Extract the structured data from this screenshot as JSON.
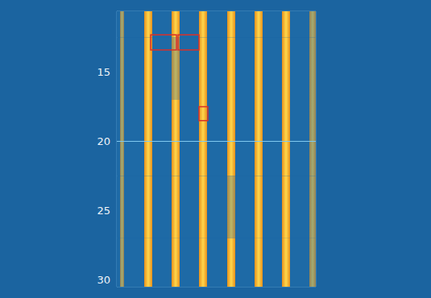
{
  "chart_data": {
    "type": "heatmap",
    "xlim": [
      0,
      247
    ],
    "ylim": [
      30.5,
      10.6
    ],
    "yticks": [
      15,
      20,
      25,
      30
    ],
    "tick_labels": "y",
    "grid": false,
    "x_bins": [
      0,
      4,
      9,
      34,
      44,
      68,
      78,
      102,
      112,
      137,
      147,
      171,
      181,
      205,
      215,
      239,
      247
    ],
    "y_bins": [
      10.6,
      12.5,
      17,
      22.5,
      27,
      30.5
    ],
    "cells": [
      [
        0,
        0.6,
        0,
        1,
        0,
        1,
        0,
        1,
        0,
        1,
        0,
        1,
        0,
        1,
        0,
        0.6
      ],
      [
        0,
        0.6,
        0,
        1,
        0,
        0.7,
        0,
        1,
        0,
        1,
        0,
        1,
        0,
        1,
        0,
        0.6
      ],
      [
        0,
        0.6,
        0,
        1,
        0,
        1,
        0,
        1,
        0,
        1,
        0,
        1,
        0,
        1,
        0,
        0.6
      ],
      [
        0,
        0.6,
        0,
        1,
        0,
        1,
        0,
        1,
        0,
        0.7,
        0,
        1,
        0,
        1,
        0,
        0.6
      ],
      [
        0,
        0.6,
        0,
        1,
        0,
        1,
        0,
        1,
        0,
        1,
        0,
        1,
        0,
        1,
        0,
        0.6
      ]
    ],
    "marked_regions": [
      {
        "x": [
          42,
          74
        ],
        "y": [
          12.3,
          13.4
        ]
      },
      {
        "x": [
          76,
          102
        ],
        "y": [
          12.3,
          13.4
        ]
      },
      {
        "x": [
          102,
          113
        ],
        "y": [
          17.5,
          18.5
        ]
      }
    ],
    "reference_line": 20
  }
}
